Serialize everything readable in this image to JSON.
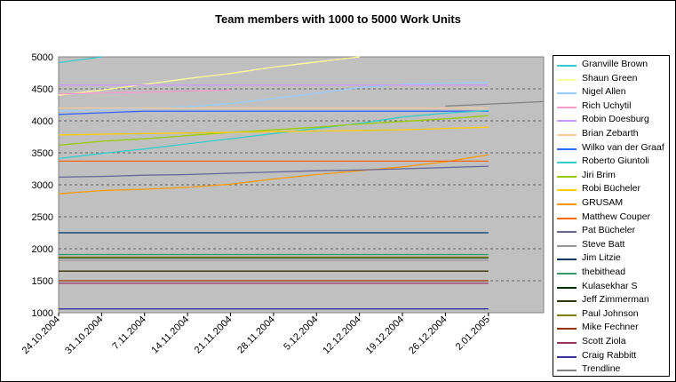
{
  "chart_data": {
    "type": "line",
    "title": "Team members with 1000 to 5000 Work Units",
    "xlabel": "",
    "ylabel": "",
    "ylim": [
      1000,
      5000
    ],
    "yticks": [
      "1000",
      "1500",
      "2000",
      "2500",
      "3000",
      "3500",
      "4000",
      "4500",
      "5000"
    ],
    "xlim": [
      "24.10.2004",
      "11.01.2005"
    ],
    "x_tick_labels": [
      "24.10.2004",
      "31.10.2004",
      "7.11.2004",
      "14.11.2004",
      "21.11.2004",
      "28.11.2004",
      "5.12.2004",
      "12.12.2004",
      "19.12.2004",
      "26.12.2004",
      "2.01.2005"
    ],
    "grid": "horizontal dashed",
    "legend_position": "right",
    "plot_background": "#c0c0c0",
    "series": [
      {
        "name": "Granville Brown",
        "color": "#33cccc",
        "x": [
          "24.10.2004",
          "31.10.2004"
        ],
        "y": [
          4910,
          5000
        ]
      },
      {
        "name": "Shaun Green",
        "color": "#ffff99",
        "x": [
          "24.10.2004",
          "31.10.2004",
          "7.11.2004",
          "14.11.2004",
          "21.11.2004",
          "28.11.2004",
          "5.12.2004",
          "12.12.2004"
        ],
        "y": [
          4400,
          4480,
          4570,
          4660,
          4740,
          4840,
          4920,
          5000
        ]
      },
      {
        "name": "Nigel Allen",
        "color": "#99ccff",
        "x": [
          "24.10.2004",
          "31.10.2004",
          "7.11.2004",
          "14.11.2004",
          "21.11.2004",
          "28.11.2004",
          "5.12.2004",
          "12.12.2004",
          "19.12.2004",
          "26.12.2004",
          "2.01.2005"
        ],
        "y": [
          4150,
          4170,
          4190,
          4220,
          4270,
          4350,
          4430,
          4520,
          4570,
          4590,
          4600
        ]
      },
      {
        "name": "Rich Uchytil",
        "color": "#ff99cc",
        "x": [
          "24.10.2004",
          "21.11.2004"
        ],
        "y": [
          4420,
          4480
        ]
      },
      {
        "name": "Robin Doesburg",
        "color": "#cc99ff",
        "x": [
          "24.10.2004",
          "2.01.2005"
        ],
        "y": [
          4560,
          4560
        ]
      },
      {
        "name": "Brian Zebarth",
        "color": "#ffcc99",
        "x": [
          "24.10.2004",
          "2.01.2005"
        ],
        "y": [
          4200,
          4200
        ]
      },
      {
        "name": "Wilko van der Graaf",
        "color": "#3366ff",
        "x": [
          "24.10.2004",
          "7.11.2004",
          "2.01.2005"
        ],
        "y": [
          4100,
          4150,
          4150
        ]
      },
      {
        "name": "Roberto Giuntoli",
        "color": "#33cccc",
        "x": [
          "24.10.2004",
          "31.10.2004",
          "7.11.2004",
          "14.11.2004",
          "21.11.2004",
          "28.11.2004",
          "5.12.2004",
          "12.12.2004",
          "19.12.2004",
          "26.12.2004",
          "2.01.2005"
        ],
        "y": [
          3410,
          3490,
          3560,
          3640,
          3720,
          3800,
          3880,
          3960,
          4060,
          4120,
          4160
        ]
      },
      {
        "name": "Jiri Brim",
        "color": "#99cc00",
        "x": [
          "24.10.2004",
          "31.10.2004",
          "7.11.2004",
          "14.11.2004",
          "21.11.2004",
          "28.11.2004",
          "5.12.2004",
          "12.12.2004",
          "19.12.2004",
          "26.12.2004",
          "2.01.2005"
        ],
        "y": [
          3620,
          3680,
          3720,
          3770,
          3820,
          3860,
          3900,
          3950,
          3990,
          4030,
          4080
        ]
      },
      {
        "name": "Robi Bücheler",
        "color": "#ffcc00",
        "x": [
          "24.10.2004",
          "31.10.2004",
          "7.11.2004",
          "14.11.2004",
          "21.11.2004",
          "28.11.2004",
          "5.12.2004",
          "12.12.2004",
          "19.12.2004",
          "26.12.2004",
          "2.01.2005"
        ],
        "y": [
          3780,
          3790,
          3800,
          3810,
          3820,
          3830,
          3840,
          3850,
          3860,
          3880,
          3900
        ]
      },
      {
        "name": "GRUSAM",
        "color": "#ff9900",
        "x": [
          "24.10.2004",
          "31.10.2004",
          "7.11.2004",
          "14.11.2004",
          "21.11.2004",
          "28.11.2004",
          "5.12.2004",
          "12.12.2004",
          "19.12.2004",
          "26.12.2004",
          "2.01.2005"
        ],
        "y": [
          2860,
          2910,
          2930,
          2960,
          3010,
          3090,
          3160,
          3220,
          3280,
          3360,
          3470
        ]
      },
      {
        "name": "Matthew Couper",
        "color": "#ff6600",
        "x": [
          "24.10.2004",
          "2.01.2005"
        ],
        "y": [
          3370,
          3370
        ]
      },
      {
        "name": "Pat Bücheler",
        "color": "#666699",
        "x": [
          "24.10.2004",
          "31.10.2004",
          "7.11.2004",
          "14.11.2004",
          "21.11.2004",
          "28.11.2004",
          "5.12.2004",
          "12.12.2004",
          "19.12.2004",
          "26.12.2004",
          "2.01.2005"
        ],
        "y": [
          3120,
          3130,
          3150,
          3160,
          3180,
          3200,
          3220,
          3230,
          3250,
          3270,
          3290
        ]
      },
      {
        "name": "Steve Batt",
        "color": "#969696",
        "x": [
          "24.10.2004",
          "2.01.2005"
        ],
        "y": [
          1820,
          1820
        ]
      },
      {
        "name": "Jim Litzie",
        "color": "#003366",
        "x": [
          "24.10.2004",
          "2.01.2005"
        ],
        "y": [
          2250,
          2250
        ]
      },
      {
        "name": "thebithead",
        "color": "#339966",
        "x": [
          "24.10.2004",
          "2.01.2005"
        ],
        "y": [
          1910,
          1910
        ]
      },
      {
        "name": "Kulasekhar S",
        "color": "#003300",
        "x": [
          "24.10.2004",
          "2.01.2005"
        ],
        "y": [
          1860,
          1860
        ]
      },
      {
        "name": "Jeff Zimmerman",
        "color": "#333300",
        "x": [
          "24.10.2004",
          "2.01.2005"
        ],
        "y": [
          1650,
          1650
        ]
      },
      {
        "name": "Paul Johnson",
        "color": "#808000",
        "x": [
          "24.10.2004",
          "2.01.2005"
        ],
        "y": [
          1870,
          1870
        ]
      },
      {
        "name": "Mike Fechner",
        "color": "#993300",
        "x": [
          "24.10.2004",
          "2.01.2005"
        ],
        "y": [
          1500,
          1500
        ]
      },
      {
        "name": "Scott Ziola",
        "color": "#993366",
        "x": [
          "24.10.2004",
          "2.01.2005"
        ],
        "y": [
          1460,
          1460
        ]
      },
      {
        "name": "Craig Rabbitt",
        "color": "#333399",
        "x": [
          "24.10.2004",
          "2.01.2005"
        ],
        "y": [
          1060,
          1060
        ]
      },
      {
        "name": "Trendline",
        "color": "#808080",
        "x": [
          "26.12.2004",
          "11.01.2005"
        ],
        "y": [
          4230,
          4300
        ]
      }
    ]
  }
}
